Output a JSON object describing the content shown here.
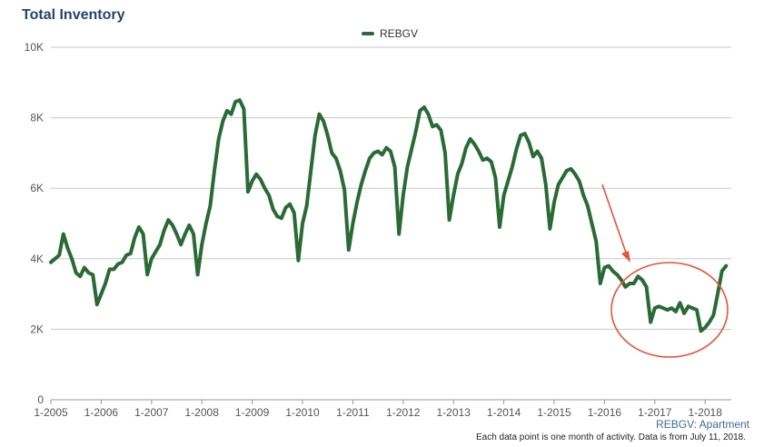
{
  "chart_data": {
    "type": "line",
    "title": "Total Inventory",
    "legend": {
      "position": "top-center",
      "entries": [
        "REBGV"
      ]
    },
    "series": [
      {
        "name": "REBGV",
        "color": "#2a6a35",
        "start": "1-2005",
        "frequency": "monthly",
        "values": [
          3900,
          4000,
          4100,
          4700,
          4300,
          4000,
          3600,
          3500,
          3750,
          3600,
          3550,
          2700,
          3000,
          3300,
          3700,
          3700,
          3850,
          3900,
          4100,
          4150,
          4600,
          4900,
          4700,
          3550,
          4000,
          4200,
          4400,
          4800,
          5100,
          4950,
          4700,
          4400,
          4700,
          4950,
          4700,
          3550,
          4400,
          5000,
          5500,
          6500,
          7400,
          7900,
          8200,
          8100,
          8450,
          8500,
          8250,
          5900,
          6200,
          6400,
          6250,
          6000,
          5800,
          5400,
          5200,
          5150,
          5450,
          5550,
          5300,
          3950,
          5000,
          5500,
          6500,
          7500,
          8100,
          7900,
          7500,
          7000,
          6850,
          6500,
          5950,
          4250,
          5000,
          5600,
          6100,
          6500,
          6850,
          7000,
          7050,
          6950,
          7150,
          7050,
          6600,
          4700,
          5800,
          6600,
          7100,
          7600,
          8200,
          8300,
          8100,
          7750,
          7800,
          7650,
          7000,
          5100,
          5800,
          6400,
          6700,
          7150,
          7400,
          7250,
          7050,
          6800,
          6850,
          6750,
          6300,
          4900,
          5800,
          6200,
          6600,
          7100,
          7500,
          7550,
          7300,
          6900,
          7050,
          6850,
          6100,
          4850,
          5600,
          6100,
          6300,
          6500,
          6550,
          6400,
          6200,
          5800,
          5500,
          5000,
          4500,
          3300,
          3750,
          3800,
          3650,
          3550,
          3400,
          3200,
          3300,
          3300,
          3500,
          3400,
          3200,
          2200,
          2600,
          2650,
          2600,
          2550,
          2600,
          2500,
          2750,
          2450,
          2650,
          2600,
          2550,
          1950,
          2050,
          2200,
          2400,
          3000,
          3650,
          3800
        ]
      }
    ],
    "x_tick_labels": [
      "1-2005",
      "1-2006",
      "1-2007",
      "1-2008",
      "1-2009",
      "1-2010",
      "1-2011",
      "1-2012",
      "1-2013",
      "1-2014",
      "1-2015",
      "1-2016",
      "1-2017",
      "1-2018"
    ],
    "y_ticks": [
      0,
      2000,
      4000,
      6000,
      8000,
      10000
    ],
    "y_tick_labels": [
      "0",
      "2K",
      "4K",
      "6K",
      "8K",
      "10K"
    ],
    "ylim": [
      0,
      10000
    ],
    "grid": {
      "horizontal": true,
      "vertical": false
    },
    "annotations": [
      {
        "type": "arrow",
        "color": "#e5533a"
      },
      {
        "type": "circle",
        "color": "#e5533a"
      }
    ]
  },
  "footer": {
    "source": "REBGV: Apartment",
    "note": "Each data point is one month of activity. Data is from July 11, 2018."
  }
}
